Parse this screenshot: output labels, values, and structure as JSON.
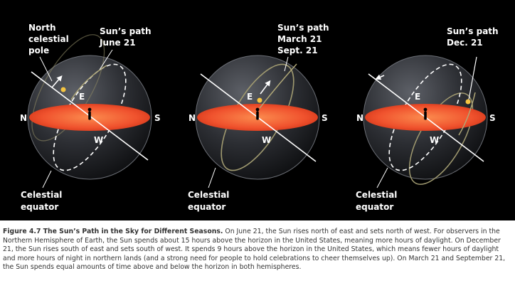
{
  "colors": {
    "background": "#000000",
    "horizon_plane": "#f0532e",
    "sun": "#f5c542",
    "sun_path": "#a09a70",
    "caption_text": "#333333"
  },
  "panels": [
    {
      "id": "june",
      "path_labels": [
        "Sun’s path",
        "June 21"
      ],
      "pole_labels": [
        "North",
        "celestial",
        "pole"
      ],
      "equator_labels": [
        "Celestial",
        "equator"
      ],
      "compass": {
        "north": "N",
        "south": "S",
        "east": "E",
        "west": "W"
      }
    },
    {
      "id": "march",
      "path_labels": [
        "Sun’s path",
        "March 21",
        "Sept. 21"
      ],
      "equator_labels": [
        "Celestial",
        "equator"
      ],
      "compass": {
        "north": "N",
        "south": "S",
        "east": "E",
        "west": "W"
      }
    },
    {
      "id": "december",
      "path_labels": [
        "Sun’s path",
        "Dec. 21"
      ],
      "equator_labels": [
        "Celestial",
        "equator"
      ],
      "compass": {
        "north": "N",
        "south": "S",
        "east": "E",
        "west": "W"
      }
    }
  ],
  "caption": {
    "title": "Figure 4.7 The Sun’s Path in the Sky for Different Seasons.",
    "body": "On June 21, the Sun rises north of east and sets north of west. For observers in the Northern Hemisphere of Earth, the Sun spends about 15 hours above the horizon in the United States, meaning more hours of daylight. On December 21, the Sun rises south of east and sets south of west. It spends 9 hours above the horizon in the United States, which means fewer hours of daylight and more hours of night in northern lands (and a strong need for people to hold celebrations to cheer themselves up). On March 21 and September 21, the Sun spends equal amounts of time above and below the horizon in both hemispheres."
  }
}
